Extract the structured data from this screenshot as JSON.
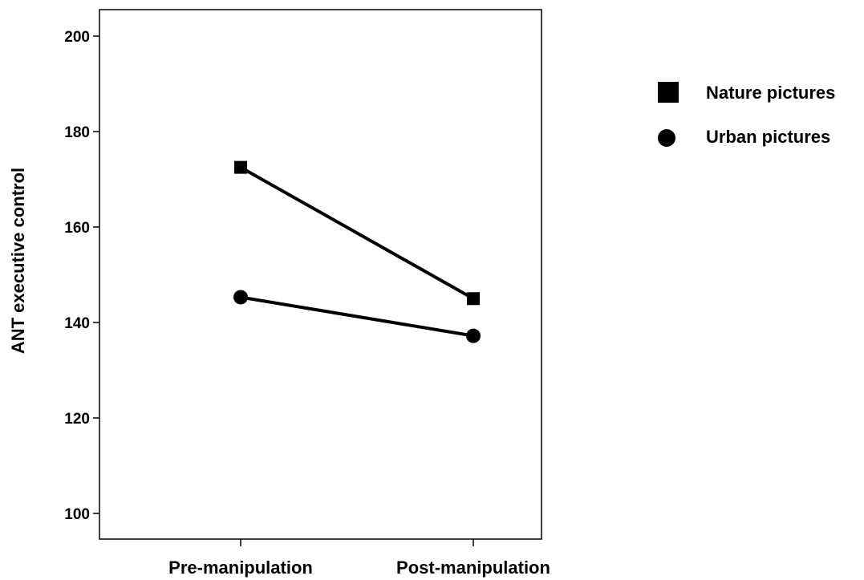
{
  "chart_data": {
    "type": "line",
    "categories": [
      "Pre-manipulation",
      "Post-manipulation"
    ],
    "series": [
      {
        "name": "Nature pictures",
        "marker": "square",
        "values": [
          172.5,
          145.0
        ]
      },
      {
        "name": "Urban pictures",
        "marker": "circle",
        "values": [
          145.3,
          137.2
        ]
      }
    ],
    "ylabel": "ANT executive control",
    "xlabel": "",
    "ylim": [
      95,
      205
    ],
    "yticks": [
      100,
      120,
      140,
      160,
      180,
      200
    ],
    "ytick_labels": [
      "100",
      "120",
      "140",
      "160",
      "180",
      "200"
    ],
    "grid": false,
    "legend": "right",
    "color": "#000000"
  }
}
